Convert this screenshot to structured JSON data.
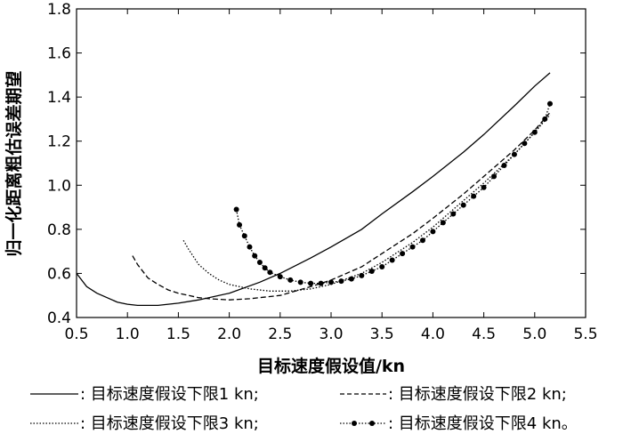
{
  "chart_data": {
    "type": "line",
    "xlabel": "目标速度假设值/kn",
    "ylabel": "归一化距离粗估误差期望",
    "xlim": [
      0.5,
      5.5
    ],
    "ylim": [
      0.4,
      1.8
    ],
    "x_ticks": [
      "0.5",
      "1.0",
      "1.5",
      "2.0",
      "2.5",
      "3.0",
      "3.5",
      "4.0",
      "4.5",
      "5.0",
      "5.5"
    ],
    "y_ticks": [
      "0.4",
      "0.6",
      "0.8",
      "1.0",
      "1.2",
      "1.4",
      "1.6",
      "1.8"
    ],
    "grid": false,
    "legend_position": "bottom",
    "series": [
      {
        "name": "目标速度假设下限1 kn;",
        "style": "solid",
        "x": [
          0.5,
          0.6,
          0.7,
          0.8,
          0.9,
          1.0,
          1.1,
          1.2,
          1.3,
          1.4,
          1.5,
          1.7,
          2.0,
          2.3,
          2.5,
          2.8,
          3.0,
          3.3,
          3.5,
          3.8,
          4.0,
          4.3,
          4.5,
          4.8,
          5.0,
          5.15
        ],
        "y": [
          0.6,
          0.54,
          0.51,
          0.49,
          0.47,
          0.46,
          0.455,
          0.455,
          0.455,
          0.46,
          0.465,
          0.48,
          0.51,
          0.56,
          0.6,
          0.67,
          0.72,
          0.8,
          0.87,
          0.97,
          1.04,
          1.15,
          1.23,
          1.36,
          1.45,
          1.51
        ]
      },
      {
        "name": "目标速度假设下限2 kn;",
        "style": "dashed",
        "x": [
          1.05,
          1.1,
          1.2,
          1.3,
          1.4,
          1.5,
          1.6,
          1.7,
          1.8,
          2.0,
          2.2,
          2.5,
          2.8,
          3.0,
          3.3,
          3.5,
          3.8,
          4.0,
          4.3,
          4.5,
          4.8,
          5.0,
          5.15
        ],
        "y": [
          0.68,
          0.64,
          0.58,
          0.55,
          0.525,
          0.51,
          0.5,
          0.49,
          0.485,
          0.48,
          0.485,
          0.5,
          0.54,
          0.57,
          0.63,
          0.69,
          0.78,
          0.85,
          0.96,
          1.04,
          1.16,
          1.25,
          1.33
        ]
      },
      {
        "name": "目标速度假设下限3 kn;",
        "style": "dotted",
        "x": [
          1.55,
          1.6,
          1.7,
          1.8,
          1.9,
          2.0,
          2.2,
          2.4,
          2.6,
          2.8,
          3.0,
          3.3,
          3.5,
          3.8,
          4.0,
          4.3,
          4.5,
          4.8,
          5.0,
          5.15
        ],
        "y": [
          0.75,
          0.71,
          0.64,
          0.6,
          0.57,
          0.55,
          0.53,
          0.52,
          0.52,
          0.53,
          0.55,
          0.6,
          0.65,
          0.74,
          0.81,
          0.93,
          1.01,
          1.14,
          1.24,
          1.32
        ]
      },
      {
        "name": "目标速度假设下限4 kn。",
        "style": "dotted-markers",
        "x": [
          2.07,
          2.1,
          2.15,
          2.2,
          2.25,
          2.3,
          2.35,
          2.4,
          2.5,
          2.6,
          2.7,
          2.8,
          2.9,
          3.0,
          3.1,
          3.2,
          3.3,
          3.4,
          3.5,
          3.6,
          3.7,
          3.8,
          3.9,
          4.0,
          4.1,
          4.2,
          4.3,
          4.4,
          4.5,
          4.6,
          4.7,
          4.8,
          4.9,
          5.0,
          5.1,
          5.15
        ],
        "y": [
          0.89,
          0.82,
          0.77,
          0.72,
          0.68,
          0.65,
          0.625,
          0.605,
          0.585,
          0.57,
          0.56,
          0.555,
          0.555,
          0.56,
          0.565,
          0.575,
          0.59,
          0.61,
          0.63,
          0.66,
          0.69,
          0.72,
          0.75,
          0.79,
          0.83,
          0.87,
          0.91,
          0.95,
          0.99,
          1.04,
          1.09,
          1.14,
          1.19,
          1.24,
          1.3,
          1.37
        ]
      }
    ]
  },
  "legend": {
    "items": [
      {
        "prefix": ": ",
        "label": "目标速度假设下限1 kn;"
      },
      {
        "prefix": ": ",
        "label": "目标速度假设下限2 kn;"
      },
      {
        "prefix": ": ",
        "label": "目标速度假设下限3 kn;"
      },
      {
        "prefix": ": ",
        "label": "目标速度假设下限4 kn。"
      }
    ]
  }
}
